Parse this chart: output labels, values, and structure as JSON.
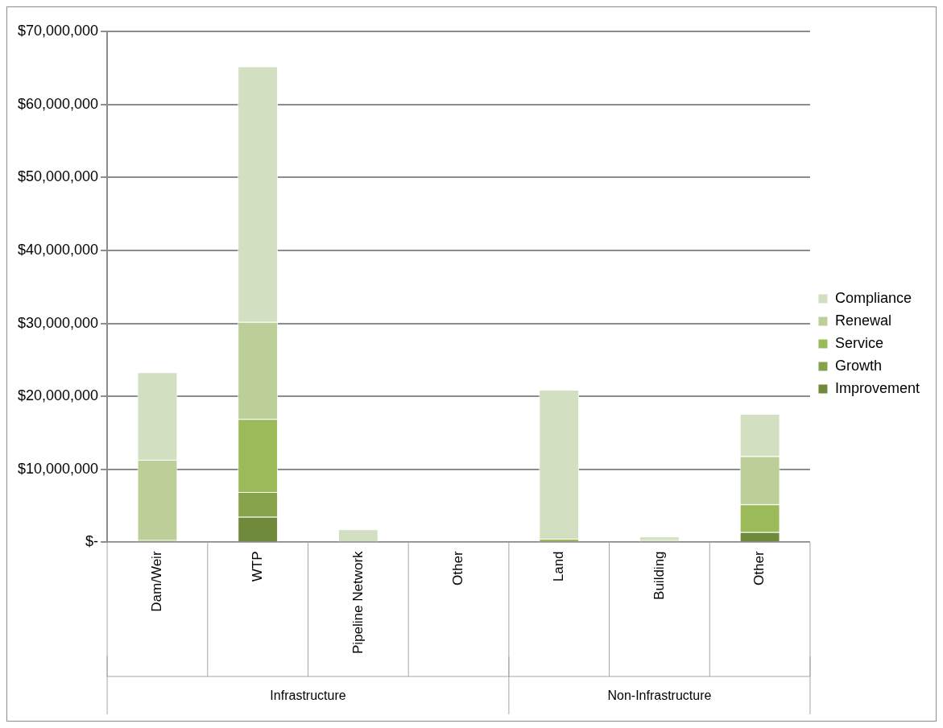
{
  "chart_data": {
    "type": "bar",
    "stacked": true,
    "categories": [
      "Dam/Weir",
      "WTP",
      "Pipeline Network",
      "Other",
      "Land",
      "Building",
      "Other"
    ],
    "series": [
      {
        "name": "Improvement",
        "color": "#6e8a3a",
        "values": [
          0,
          3500000,
          0,
          100000,
          0,
          0,
          1400000
        ]
      },
      {
        "name": "Growth",
        "color": "#86a24a",
        "values": [
          0,
          3400000,
          0,
          0,
          0,
          0,
          0
        ]
      },
      {
        "name": "Service",
        "color": "#9bbb59",
        "values": [
          300000,
          10000000,
          0,
          0,
          500000,
          0,
          3800000
        ]
      },
      {
        "name": "Renewal",
        "color": "#bccf98",
        "values": [
          11000000,
          13300000,
          0,
          0,
          0,
          300000,
          6600000
        ]
      },
      {
        "name": "Compliance",
        "color": "#d2dfc0",
        "values": [
          12000000,
          35000000,
          1800000,
          0,
          20400000,
          500000,
          5800000
        ]
      }
    ],
    "ylim": [
      0,
      70000000
    ],
    "yticks": [
      {
        "value": 0,
        "label": "$-"
      },
      {
        "value": 10000000,
        "label": "$10,000,000"
      },
      {
        "value": 20000000,
        "label": "$20,000,000"
      },
      {
        "value": 30000000,
        "label": "$30,000,000"
      },
      {
        "value": 40000000,
        "label": "$40,000,000"
      },
      {
        "value": 50000000,
        "label": "$50,000,000"
      },
      {
        "value": 60000000,
        "label": "$60,000,000"
      },
      {
        "value": 70000000,
        "label": "$70,000,000"
      }
    ],
    "annotations": [
      "Infrastructure",
      "Non-Infrastructure"
    ],
    "grid": "y",
    "legend": "right"
  }
}
